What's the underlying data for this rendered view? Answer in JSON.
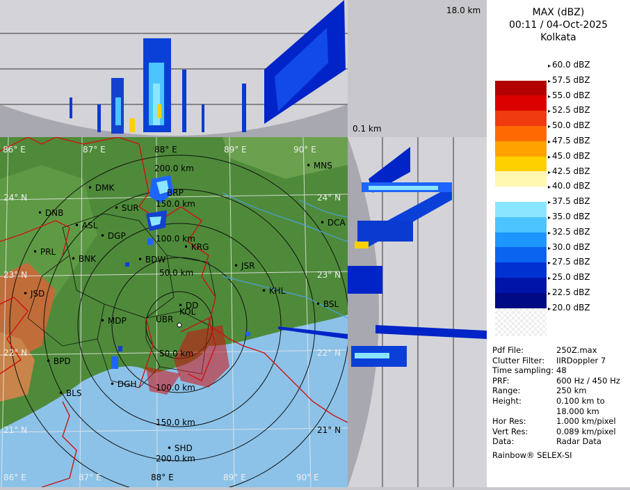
{
  "header": {
    "product": "MAX (dBZ)",
    "datetime": "00:11 / 04-Oct-2025",
    "station": "Kolkata"
  },
  "height_scale": {
    "top": "18.0 km",
    "bottom": "0.1 km"
  },
  "legend": {
    "steps": [
      {
        "label": "60.0 dBZ",
        "color": "#ffffff"
      },
      {
        "label": "57.5 dBZ",
        "color": "#ffffff"
      },
      {
        "label": "55.0 dBZ",
        "color": "#b20000"
      },
      {
        "label": "52.5 dBZ",
        "color": "#dc0000"
      },
      {
        "label": "50.0 dBZ",
        "color": "#f03a10"
      },
      {
        "label": "47.5 dBZ",
        "color": "#ff6a00"
      },
      {
        "label": "45.0 dBZ",
        "color": "#ffa200"
      },
      {
        "label": "42.5 dBZ",
        "color": "#ffd000"
      },
      {
        "label": "40.0 dBZ",
        "color": "#fff8b0"
      },
      {
        "label": "37.5 dBZ",
        "color": "#ffffff"
      },
      {
        "label": "35.0 dBZ",
        "color": "#8ae6ff"
      },
      {
        "label": "32.5 dBZ",
        "color": "#4cc4ff"
      },
      {
        "label": "30.0 dBZ",
        "color": "#1e96ff"
      },
      {
        "label": "27.5 dBZ",
        "color": "#0a64f0"
      },
      {
        "label": "25.0 dBZ",
        "color": "#0032d2"
      },
      {
        "label": "22.5 dBZ",
        "color": "#0014aa"
      },
      {
        "label": "20.0 dBZ",
        "color": "#000a82"
      }
    ]
  },
  "info": [
    {
      "key": "Pdf File:",
      "value": "250Z.max"
    },
    {
      "key": "Clutter Filter:",
      "value": "IIRDoppler 7"
    },
    {
      "key": "Time sampling:",
      "value": "48"
    },
    {
      "key": "PRF:",
      "value": "600 Hz / 450 Hz"
    },
    {
      "key": "Range:",
      "value": "250 km"
    },
    {
      "key": "Height:",
      "value": "0.100 km to"
    },
    {
      "key": "",
      "value": "18.000 km"
    },
    {
      "key": "Hor Res:",
      "value": "1.000 km/pixel"
    },
    {
      "key": "Vert Res:",
      "value": "0.089 km/pixel"
    },
    {
      "key": "Data:",
      "value": "Radar Data"
    }
  ],
  "footer": "Rainbow® SELEX-SI",
  "map": {
    "lon_labels": [
      "86° E",
      "87° E",
      "88° E",
      "89° E",
      "90° E"
    ],
    "lat_labels": [
      "24° N",
      "23° N",
      "22° N",
      "21° N"
    ],
    "range_rings": [
      "200.0 km",
      "150.0 km",
      "100.0 km",
      "50.0 km",
      "50.0 km",
      "100.0 km",
      "150.0 km",
      "200.0 km"
    ],
    "places": [
      "MNS",
      "DMK",
      "BRP",
      "DNB",
      "SUR",
      "ASL",
      "DGP",
      "DCA",
      "PRL",
      "KRG",
      "BNK",
      "BDW",
      "JSR",
      "KHL",
      "JSD",
      "DD",
      "BSL",
      "KOL",
      "UBR",
      "MDP",
      "BPD",
      "DGH",
      "BLS",
      "SHD"
    ]
  },
  "colors": {
    "land": "#4e8a3a",
    "sea": "#8cc2e8",
    "boundary": "#d01010",
    "panel": "#d4d4d8"
  }
}
